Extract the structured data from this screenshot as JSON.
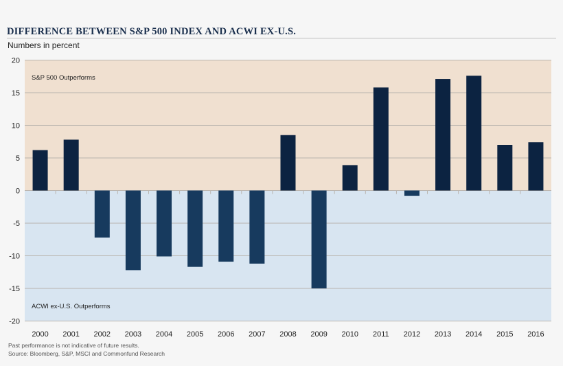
{
  "chart_data": {
    "type": "bar",
    "title": "DIFFERENCE BETWEEN S&P 500 INDEX AND ACWI EX-U.S.",
    "subtitle": "Numbers in percent",
    "categories": [
      "2000",
      "2001",
      "2002",
      "2003",
      "2004",
      "2005",
      "2006",
      "2007",
      "2008",
      "2009",
      "2010",
      "2011",
      "2012",
      "2013",
      "2014",
      "2015",
      "2016"
    ],
    "values": [
      6.2,
      7.8,
      -7.2,
      -12.2,
      -10.1,
      -11.7,
      -10.9,
      -11.2,
      8.5,
      -15.0,
      3.9,
      15.8,
      -0.8,
      17.1,
      17.6,
      7.0,
      7.4
    ],
    "ylim": [
      -20,
      20
    ],
    "yticks": [
      20,
      15,
      10,
      5,
      0,
      -5,
      -10,
      -15,
      -20
    ],
    "grid": true,
    "annotations": {
      "positive_region": "S&P 500 Outperforms",
      "negative_region": "ACWI ex-U.S. Outperforms"
    },
    "colors": {
      "positive_bar": "#0c2341",
      "negative_bar": "#173a5e",
      "positive_region": "#f0e0d0",
      "negative_region": "#d8e5f1",
      "gridline": "#b9b4ae"
    }
  },
  "footnotes": {
    "disclaimer": "Past performance is not indicative of future results.",
    "source": "Source: Bloomberg, S&P, MSCI and Commonfund Research"
  }
}
